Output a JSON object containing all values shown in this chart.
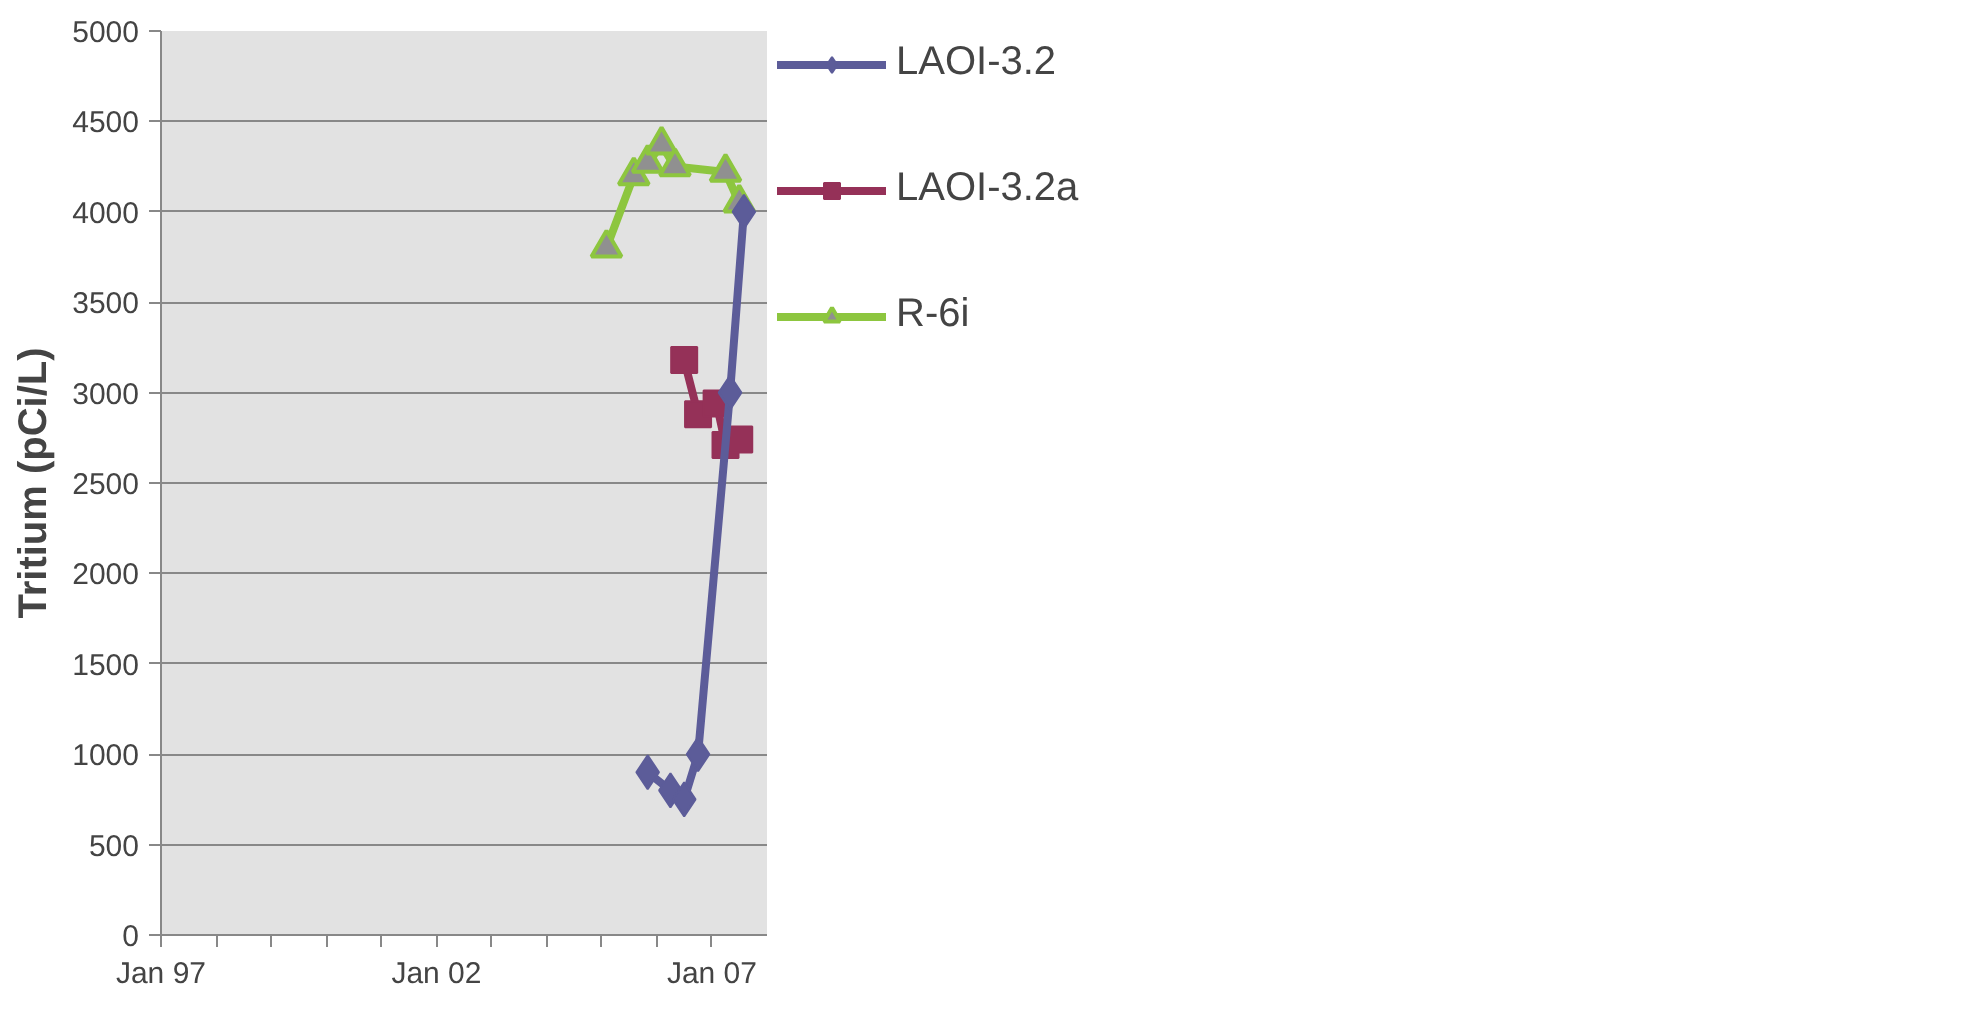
{
  "chart_data": {
    "type": "line",
    "ylabel": "Tritium (pCi/L)",
    "xlim": [
      "1997-01-01",
      "2008-01-01"
    ],
    "xticks": [
      {
        "value": "1997-01-01",
        "label": "Jan 97"
      },
      {
        "value": "1998-01-01",
        "label": null
      },
      {
        "value": "1999-01-01",
        "label": null
      },
      {
        "value": "2000-01-01",
        "label": null
      },
      {
        "value": "2001-01-01",
        "label": null
      },
      {
        "value": "2002-01-01",
        "label": "Jan 02"
      },
      {
        "value": "2003-01-01",
        "label": null
      },
      {
        "value": "2004-01-01",
        "label": null
      },
      {
        "value": "2005-01-01",
        "label": null
      },
      {
        "value": "2006-01-01",
        "label": null
      },
      {
        "value": "2007-01-01",
        "label": "Jan 07"
      }
    ],
    "ylim": [
      0,
      5000
    ],
    "yticks": [
      0,
      500,
      1000,
      1500,
      2000,
      2500,
      3000,
      3500,
      4000,
      4500,
      5000
    ],
    "grid": "y",
    "legend": "right",
    "line_style": "solid",
    "series": [
      {
        "name": "LAOI-3.2",
        "color": "#5c5c99",
        "marker": "diamond",
        "x": [
          "2005-11",
          "2006-04",
          "2006-07",
          "2006-10",
          "2007-05",
          "2007-08"
        ],
        "values": [
          900,
          800,
          750,
          1000,
          3000,
          4000
        ]
      },
      {
        "name": "LAOI-3.2a",
        "color": "#953158",
        "marker": "square",
        "x": [
          "2006-07",
          "2006-10",
          "2007-02",
          "2007-04",
          "2007-07"
        ],
        "values": [
          3180,
          2880,
          2940,
          2710,
          2740
        ]
      },
      {
        "name": "R-6i",
        "color": "#8dc63f",
        "marker": "triangle",
        "x": [
          "2005-02",
          "2005-08",
          "2005-11",
          "2006-02",
          "2006-05",
          "2007-04",
          "2007-07"
        ],
        "values": [
          3800,
          4200,
          4270,
          4370,
          4250,
          4220,
          4050
        ]
      }
    ]
  }
}
